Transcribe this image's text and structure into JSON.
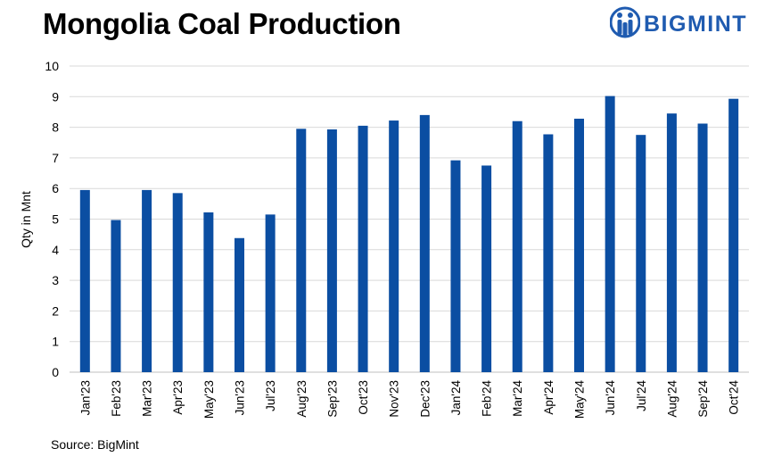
{
  "title": "Mongolia Coal Production",
  "logo": {
    "name": "BIGMINT"
  },
  "source": "Source: BigMint",
  "chart_data": {
    "type": "bar",
    "ylabel": "Qty in Mnt",
    "xlabel": "",
    "ylim": [
      0,
      10
    ],
    "yticks": [
      0,
      1,
      2,
      3,
      4,
      5,
      6,
      7,
      8,
      9,
      10
    ],
    "grid": true,
    "bar_color": "#0b4ea2",
    "categories": [
      "Jan'23",
      "Feb'23",
      "Mar'23",
      "Apr'23",
      "May'23",
      "Jun'23",
      "Jul'23",
      "Aug'23",
      "Sep'23",
      "Oct'23",
      "Nov'23",
      "Dec'23",
      "Jan'24",
      "Feb'24",
      "Mar'24",
      "Apr'24",
      "May'24",
      "Jun'24",
      "Jul'24",
      "Aug'24",
      "Sep'24",
      "Oct'24"
    ],
    "values": [
      5.95,
      4.97,
      5.95,
      5.85,
      5.22,
      4.38,
      5.15,
      7.95,
      7.93,
      8.05,
      8.22,
      8.4,
      6.92,
      6.75,
      8.2,
      7.77,
      8.28,
      9.02,
      7.75,
      8.45,
      8.12,
      8.93
    ]
  }
}
